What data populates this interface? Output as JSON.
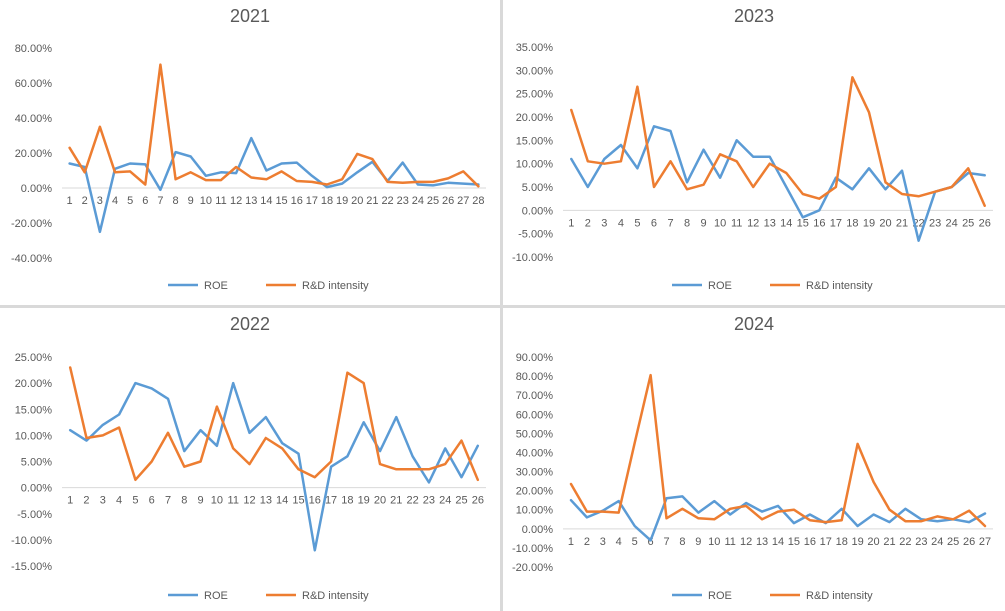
{
  "chart_data": [
    {
      "type": "line",
      "title": "2021",
      "x": [
        1,
        2,
        3,
        4,
        5,
        6,
        7,
        8,
        9,
        10,
        11,
        12,
        13,
        14,
        15,
        16,
        17,
        18,
        19,
        20,
        21,
        22,
        23,
        24,
        25,
        26,
        27,
        28
      ],
      "ylim": [
        -0.4,
        0.8
      ],
      "yticks": [
        "-40.00%",
        "-20.00%",
        "0.00%",
        "20.00%",
        "40.00%",
        "60.00%",
        "80.00%"
      ],
      "series": [
        {
          "name": "ROE",
          "color": "#5B9BD5",
          "values": [
            0.14,
            0.12,
            -0.25,
            0.11,
            0.14,
            0.135,
            -0.01,
            0.205,
            0.18,
            0.07,
            0.09,
            0.085,
            0.285,
            0.1,
            0.14,
            0.145,
            0.07,
            0.005,
            0.025,
            0.09,
            0.15,
            0.04,
            0.145,
            0.02,
            0.015,
            0.03,
            0.025,
            0.02
          ]
        },
        {
          "name": "R&D intensity",
          "color": "#ED7D31",
          "values": [
            0.23,
            0.09,
            0.35,
            0.09,
            0.095,
            0.02,
            0.705,
            0.05,
            0.09,
            0.045,
            0.045,
            0.12,
            0.06,
            0.05,
            0.095,
            0.04,
            0.035,
            0.02,
            0.05,
            0.195,
            0.165,
            0.035,
            0.03,
            0.035,
            0.035,
            0.055,
            0.095,
            0.01
          ]
        }
      ]
    },
    {
      "type": "line",
      "title": "2023",
      "x": [
        1,
        2,
        3,
        4,
        5,
        6,
        7,
        8,
        9,
        10,
        11,
        12,
        13,
        14,
        15,
        16,
        17,
        18,
        19,
        20,
        21,
        22,
        23,
        24,
        25,
        26
      ],
      "ylim": [
        -0.1,
        0.35
      ],
      "yticks": [
        "-10.00%",
        "-5.00%",
        "0.00%",
        "5.00%",
        "10.00%",
        "15.00%",
        "20.00%",
        "25.00%",
        "30.00%",
        "35.00%"
      ],
      "series": [
        {
          "name": "ROE",
          "color": "#5B9BD5",
          "values": [
            0.11,
            0.05,
            0.11,
            0.14,
            0.09,
            0.18,
            0.17,
            0.06,
            0.13,
            0.07,
            0.15,
            0.115,
            0.115,
            0.05,
            -0.015,
            0.0,
            0.07,
            0.045,
            0.09,
            0.045,
            0.085,
            -0.065,
            0.04,
            0.05,
            0.08,
            0.075
          ]
        },
        {
          "name": "R&D intensity",
          "color": "#ED7D31",
          "values": [
            0.215,
            0.105,
            0.1,
            0.105,
            0.265,
            0.05,
            0.105,
            0.045,
            0.055,
            0.12,
            0.105,
            0.05,
            0.1,
            0.08,
            0.035,
            0.025,
            0.05,
            0.285,
            0.21,
            0.06,
            0.035,
            0.03,
            0.04,
            0.05,
            0.09,
            0.01
          ]
        }
      ]
    },
    {
      "type": "line",
      "title": "2022",
      "x": [
        1,
        2,
        3,
        4,
        5,
        6,
        7,
        8,
        9,
        10,
        11,
        12,
        13,
        14,
        15,
        16,
        17,
        18,
        19,
        20,
        21,
        22,
        23,
        24,
        25,
        26
      ],
      "ylim": [
        -0.15,
        0.25
      ],
      "yticks": [
        "-15.00%",
        "-10.00%",
        "-5.00%",
        "0.00%",
        "5.00%",
        "10.00%",
        "15.00%",
        "20.00%",
        "25.00%"
      ],
      "series": [
        {
          "name": "ROE",
          "color": "#5B9BD5",
          "values": [
            0.11,
            0.09,
            0.12,
            0.14,
            0.2,
            0.19,
            0.17,
            0.07,
            0.11,
            0.08,
            0.2,
            0.105,
            0.135,
            0.085,
            0.065,
            -0.12,
            0.04,
            0.06,
            0.125,
            0.07,
            0.135,
            0.06,
            0.01,
            0.075,
            0.02,
            0.08
          ]
        },
        {
          "name": "R&D intensity",
          "color": "#ED7D31",
          "values": [
            0.23,
            0.095,
            0.1,
            0.115,
            0.015,
            0.05,
            0.105,
            0.04,
            0.05,
            0.155,
            0.075,
            0.045,
            0.095,
            0.075,
            0.035,
            0.02,
            0.05,
            0.22,
            0.2,
            0.045,
            0.035,
            0.035,
            0.035,
            0.045,
            0.09,
            0.015
          ]
        }
      ]
    },
    {
      "type": "line",
      "title": "2024",
      "x": [
        1,
        2,
        3,
        4,
        5,
        6,
        7,
        8,
        9,
        10,
        11,
        12,
        13,
        14,
        15,
        16,
        17,
        18,
        19,
        20,
        21,
        22,
        23,
        24,
        25,
        26,
        27
      ],
      "ylim": [
        -0.2,
        0.9
      ],
      "yticks": [
        "-20.00%",
        "-10.00%",
        "0.00%",
        "10.00%",
        "20.00%",
        "30.00%",
        "40.00%",
        "50.00%",
        "60.00%",
        "70.00%",
        "80.00%",
        "90.00%"
      ],
      "series": [
        {
          "name": "ROE",
          "color": "#5B9BD5",
          "values": [
            0.15,
            0.06,
            0.095,
            0.145,
            0.015,
            -0.06,
            0.16,
            0.17,
            0.085,
            0.145,
            0.075,
            0.135,
            0.09,
            0.12,
            0.03,
            0.075,
            0.03,
            0.105,
            0.015,
            0.075,
            0.035,
            0.105,
            0.05,
            0.04,
            0.05,
            0.035,
            0.08
          ]
        },
        {
          "name": "R&D intensity",
          "color": "#ED7D31",
          "values": [
            0.235,
            0.09,
            0.09,
            0.085,
            0.45,
            0.805,
            0.055,
            0.105,
            0.055,
            0.05,
            0.105,
            0.12,
            0.05,
            0.09,
            0.1,
            0.045,
            0.035,
            0.045,
            0.445,
            0.245,
            0.1,
            0.04,
            0.04,
            0.065,
            0.05,
            0.095,
            0.015
          ]
        }
      ]
    }
  ]
}
